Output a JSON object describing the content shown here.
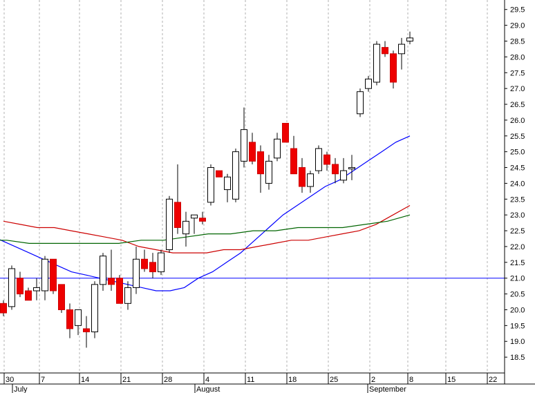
{
  "chart_data": {
    "type": "candlestick",
    "title": "",
    "xlabel": "",
    "ylabel": "",
    "ylim": [
      18.0,
      29.8
    ],
    "y_ticks": [
      18.5,
      19.0,
      19.5,
      20.0,
      20.5,
      21.0,
      21.5,
      22.0,
      22.5,
      23.0,
      23.5,
      24.0,
      24.5,
      25.0,
      25.5,
      26.0,
      26.5,
      27.0,
      27.5,
      28.0,
      28.5,
      29.0,
      29.5
    ],
    "y_axis_position": "right",
    "grid": "vertical dashed lines at week starts",
    "day_labels": [
      "30",
      "7",
      "14",
      "21",
      "28",
      "4",
      "11",
      "18",
      "25",
      "2",
      "8",
      "15",
      "22"
    ],
    "month_labels": [
      "July",
      "August",
      "September"
    ],
    "horizontal_line": {
      "value": 21.0,
      "color": "#0000ff"
    },
    "candles": [
      {
        "date": "Jun 29",
        "o": 20.2,
        "h": 20.3,
        "l": 19.8,
        "c": 19.9
      },
      {
        "date": "Jun 30",
        "o": 20.1,
        "h": 21.4,
        "l": 20.0,
        "c": 21.3
      },
      {
        "date": "Jul 1",
        "o": 21.0,
        "h": 21.2,
        "l": 20.4,
        "c": 20.5
      },
      {
        "date": "Jul 2",
        "o": 20.6,
        "h": 20.7,
        "l": 20.3,
        "c": 20.3
      },
      {
        "date": "Jul 6",
        "o": 20.6,
        "h": 21.0,
        "l": 20.3,
        "c": 20.7
      },
      {
        "date": "Jul 7",
        "o": 20.6,
        "h": 21.7,
        "l": 20.3,
        "c": 21.6
      },
      {
        "date": "Jul 8",
        "o": 21.6,
        "h": 21.6,
        "l": 20.5,
        "c": 20.6
      },
      {
        "date": "Jul 9",
        "o": 20.8,
        "h": 20.8,
        "l": 19.9,
        "c": 20.0
      },
      {
        "date": "Jul 10",
        "o": 20.0,
        "h": 20.2,
        "l": 19.1,
        "c": 19.4
      },
      {
        "date": "Jul 13",
        "o": 19.5,
        "h": 20.0,
        "l": 19.2,
        "c": 20.0
      },
      {
        "date": "Jul 14",
        "o": 19.4,
        "h": 19.8,
        "l": 18.8,
        "c": 19.3
      },
      {
        "date": "Jul 15",
        "o": 19.3,
        "h": 20.9,
        "l": 19.1,
        "c": 20.8
      },
      {
        "date": "Jul 16",
        "o": 20.8,
        "h": 21.8,
        "l": 20.6,
        "c": 21.7
      },
      {
        "date": "Jul 17",
        "o": 21.0,
        "h": 21.9,
        "l": 20.6,
        "c": 20.8
      },
      {
        "date": "Jul 20",
        "o": 21.0,
        "h": 21.1,
        "l": 20.2,
        "c": 20.2
      },
      {
        "date": "Jul 21",
        "o": 20.2,
        "h": 20.9,
        "l": 20.0,
        "c": 20.7
      },
      {
        "date": "Jul 22",
        "o": 20.7,
        "h": 22.0,
        "l": 20.5,
        "c": 21.6
      },
      {
        "date": "Jul 23",
        "o": 21.6,
        "h": 21.9,
        "l": 21.2,
        "c": 21.3
      },
      {
        "date": "Jul 24",
        "o": 21.5,
        "h": 21.8,
        "l": 21.0,
        "c": 21.2
      },
      {
        "date": "Jul 27",
        "o": 21.2,
        "h": 21.9,
        "l": 21.1,
        "c": 21.8
      },
      {
        "date": "Jul 28",
        "o": 21.9,
        "h": 23.6,
        "l": 21.8,
        "c": 23.5
      },
      {
        "date": "Jul 29",
        "o": 23.4,
        "h": 24.6,
        "l": 22.4,
        "c": 22.6
      },
      {
        "date": "Jul 30",
        "o": 22.4,
        "h": 23.1,
        "l": 22.0,
        "c": 22.8
      },
      {
        "date": "Jul 31",
        "o": 22.9,
        "h": 23.0,
        "l": 22.4,
        "c": 23.0
      },
      {
        "date": "Aug 3",
        "o": 22.9,
        "h": 23.1,
        "l": 22.7,
        "c": 22.8
      },
      {
        "date": "Aug 4",
        "o": 23.4,
        "h": 24.6,
        "l": 23.3,
        "c": 24.5
      },
      {
        "date": "Aug 5",
        "o": 24.4,
        "h": 24.4,
        "l": 24.2,
        "c": 24.2
      },
      {
        "date": "Aug 6",
        "o": 23.8,
        "h": 24.3,
        "l": 23.4,
        "c": 24.2
      },
      {
        "date": "Aug 7",
        "o": 23.5,
        "h": 25.1,
        "l": 23.4,
        "c": 25.0
      },
      {
        "date": "Aug 10",
        "o": 24.7,
        "h": 26.4,
        "l": 24.5,
        "c": 25.7
      },
      {
        "date": "Aug 11",
        "o": 25.3,
        "h": 25.6,
        "l": 24.6,
        "c": 24.7
      },
      {
        "date": "Aug 12",
        "o": 25.0,
        "h": 25.2,
        "l": 23.7,
        "c": 24.3
      },
      {
        "date": "Aug 13",
        "o": 24.0,
        "h": 24.9,
        "l": 23.8,
        "c": 24.7
      },
      {
        "date": "Aug 14",
        "o": 24.8,
        "h": 25.6,
        "l": 24.7,
        "c": 25.4
      },
      {
        "date": "Aug 17",
        "o": 25.9,
        "h": 25.9,
        "l": 25.3,
        "c": 25.3
      },
      {
        "date": "Aug 18",
        "o": 25.1,
        "h": 25.5,
        "l": 24.4,
        "c": 24.3
      },
      {
        "date": "Aug 19",
        "o": 24.5,
        "h": 24.8,
        "l": 23.7,
        "c": 23.9
      },
      {
        "date": "Aug 20",
        "o": 23.9,
        "h": 24.4,
        "l": 23.7,
        "c": 24.3
      },
      {
        "date": "Aug 21",
        "o": 24.4,
        "h": 25.2,
        "l": 24.3,
        "c": 25.1
      },
      {
        "date": "Aug 24",
        "o": 24.9,
        "h": 25.0,
        "l": 24.4,
        "c": 24.6
      },
      {
        "date": "Aug 25",
        "o": 24.6,
        "h": 24.8,
        "l": 24.0,
        "c": 24.3
      },
      {
        "date": "Aug 26",
        "o": 24.1,
        "h": 24.8,
        "l": 24.0,
        "c": 24.4
      },
      {
        "date": "Aug 27",
        "o": 24.5,
        "h": 24.9,
        "l": 24.1,
        "c": 24.5
      },
      {
        "date": "Aug 31",
        "o": 26.2,
        "h": 27.0,
        "l": 26.1,
        "c": 26.9
      },
      {
        "date": "Sep 1",
        "o": 27.0,
        "h": 27.4,
        "l": 26.9,
        "c": 27.3
      },
      {
        "date": "Sep 2",
        "o": 27.2,
        "h": 28.5,
        "l": 27.1,
        "c": 28.4
      },
      {
        "date": "Sep 3",
        "o": 28.3,
        "h": 28.5,
        "l": 28.0,
        "c": 28.1
      },
      {
        "date": "Sep 4",
        "o": 28.1,
        "h": 28.2,
        "l": 27.0,
        "c": 27.2
      },
      {
        "date": "Sep 8",
        "o": 28.1,
        "h": 28.6,
        "l": 27.6,
        "c": 28.4
      },
      {
        "date": "Sep 9",
        "o": 28.5,
        "h": 28.8,
        "l": 28.4,
        "c": 28.6
      }
    ],
    "series": [
      {
        "type": "line",
        "color": "#0000ff",
        "values": [
          22.4,
          22.2,
          22.0,
          21.8,
          21.6,
          21.4,
          21.2,
          21.1,
          21.0,
          20.9,
          20.8,
          20.7,
          20.6,
          20.6,
          20.7,
          21.0,
          21.2,
          21.5,
          21.8,
          22.2,
          22.6,
          23.0,
          23.3,
          23.6,
          23.9,
          24.1,
          24.4,
          24.7,
          25.0,
          25.3,
          25.5
        ]
      },
      {
        "type": "line",
        "color": "#cc0000",
        "values": [
          22.8,
          22.7,
          22.6,
          22.6,
          22.5,
          22.4,
          22.3,
          22.2,
          22.0,
          21.9,
          21.8,
          21.8,
          21.8,
          21.9,
          21.9,
          22.0,
          22.1,
          22.2,
          22.2,
          22.3,
          22.4,
          22.5,
          22.7,
          23.0,
          23.3
        ]
      },
      {
        "type": "line",
        "color": "#006400",
        "values": [
          22.2,
          22.2,
          22.2,
          22.1,
          22.1,
          22.1,
          22.1,
          22.1,
          22.2,
          22.2,
          22.3,
          22.4,
          22.4,
          22.5,
          22.5,
          22.6,
          22.6,
          22.6,
          22.7,
          22.8,
          23.0
        ]
      }
    ]
  }
}
